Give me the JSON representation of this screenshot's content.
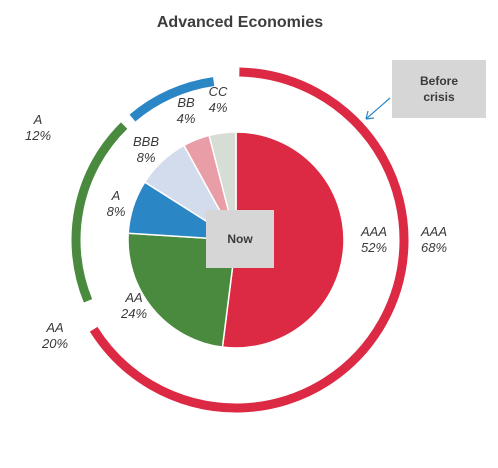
{
  "chart_data": {
    "type": "pie",
    "title": "Advanced Economies",
    "colors": {
      "AAA": "#dc2a45",
      "AA": "#4a8a3f",
      "A": "#2b86c5",
      "BBB": "#d2dcec",
      "BB": "#e99da6",
      "CC": "#d6ddd4"
    },
    "inner": {
      "name": "Now",
      "categories": [
        "AAA",
        "AA",
        "A",
        "BBB",
        "BB",
        "CC"
      ],
      "values": [
        52,
        24,
        8,
        8,
        4,
        4
      ],
      "labels": [
        "52%",
        "24%",
        "8%",
        "8%",
        "4%",
        "4%"
      ]
    },
    "outer": {
      "name": "Before crisis",
      "categories": [
        "AAA",
        "AA",
        "A"
      ],
      "values": [
        68,
        20,
        12
      ],
      "labels": [
        "68%",
        "20%",
        "12%"
      ]
    },
    "legend": "none"
  },
  "labels": {
    "now_box": "Now",
    "before_box": [
      "Before",
      "crisis"
    ]
  }
}
